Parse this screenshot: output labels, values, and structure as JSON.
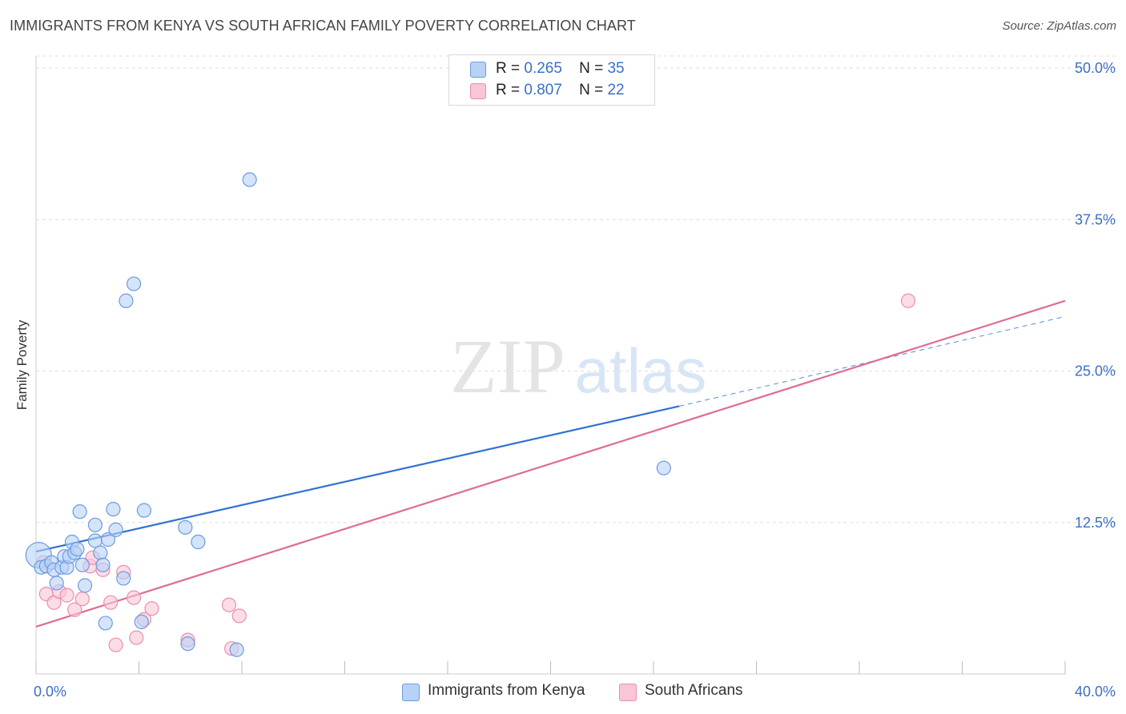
{
  "header": {
    "title": "IMMIGRANTS FROM KENYA VS SOUTH AFRICAN FAMILY POVERTY CORRELATION CHART",
    "source": "Source: ZipAtlas.com"
  },
  "colors": {
    "blue_fill": "#b8d2f5",
    "blue_stroke": "#6c9be0",
    "blue_line": "#2f72d3",
    "pink_fill": "#f8c6d6",
    "pink_stroke": "#ea8fae",
    "pink_line": "#e06b96",
    "grid": "#dddddd",
    "axis_tick_text": "#3a6fc7"
  },
  "legend_top": {
    "rows": [
      {
        "r_label": "R =",
        "r_value": "0.265",
        "n_label": "N =",
        "n_value": "35"
      },
      {
        "r_label": "R =",
        "r_value": "0.807",
        "n_label": "N =",
        "n_value": "22"
      }
    ]
  },
  "watermark": {
    "left": "ZIP",
    "right": "atlas"
  },
  "chart_data": {
    "type": "scatter",
    "title": "IMMIGRANTS FROM KENYA VS SOUTH AFRICAN FAMILY POVERTY CORRELATION CHART",
    "xlabel": "",
    "ylabel": "Family Poverty",
    "xlim": [
      0,
      40
    ],
    "ylim": [
      0,
      51
    ],
    "x_tick_labels": [
      "0.0%",
      "40.0%"
    ],
    "y_ticks": [
      12.5,
      25.0,
      37.5,
      50.0
    ],
    "y_tick_labels": [
      "12.5%",
      "25.0%",
      "37.5%",
      "50.0%"
    ],
    "grid": true,
    "legend_position": "bottom-center",
    "series": [
      {
        "name": "Immigrants from Kenya",
        "R": 0.265,
        "N": 35,
        "trend": {
          "x_start": 0,
          "y_start": 10.1,
          "x_end": 25,
          "y_end": 22.1,
          "dashed_x_end": 40,
          "dashed_y_end": 29.5
        },
        "points": [
          {
            "x": 0.1,
            "y": 9.8,
            "big": true
          },
          {
            "x": 0.2,
            "y": 8.8
          },
          {
            "x": 0.4,
            "y": 8.9
          },
          {
            "x": 0.6,
            "y": 9.2
          },
          {
            "x": 0.7,
            "y": 8.6
          },
          {
            "x": 0.8,
            "y": 7.5
          },
          {
            "x": 1.0,
            "y": 8.8
          },
          {
            "x": 1.1,
            "y": 9.7
          },
          {
            "x": 1.2,
            "y": 8.8
          },
          {
            "x": 1.3,
            "y": 9.7
          },
          {
            "x": 1.4,
            "y": 10.9
          },
          {
            "x": 1.5,
            "y": 10.0
          },
          {
            "x": 1.6,
            "y": 10.3
          },
          {
            "x": 1.7,
            "y": 13.4
          },
          {
            "x": 1.8,
            "y": 9.0
          },
          {
            "x": 1.9,
            "y": 7.3
          },
          {
            "x": 2.3,
            "y": 11.0
          },
          {
            "x": 2.3,
            "y": 12.3
          },
          {
            "x": 2.5,
            "y": 10.0
          },
          {
            "x": 2.6,
            "y": 9.0
          },
          {
            "x": 2.7,
            "y": 4.2
          },
          {
            "x": 2.8,
            "y": 11.1
          },
          {
            "x": 3.0,
            "y": 13.6
          },
          {
            "x": 3.1,
            "y": 11.9
          },
          {
            "x": 3.4,
            "y": 7.9
          },
          {
            "x": 3.5,
            "y": 30.8
          },
          {
            "x": 3.8,
            "y": 32.2
          },
          {
            "x": 4.1,
            "y": 4.3
          },
          {
            "x": 4.2,
            "y": 13.5
          },
          {
            "x": 5.8,
            "y": 12.1
          },
          {
            "x": 5.9,
            "y": 2.5
          },
          {
            "x": 6.3,
            "y": 10.9
          },
          {
            "x": 7.8,
            "y": 2.0
          },
          {
            "x": 8.3,
            "y": 40.8
          },
          {
            "x": 24.4,
            "y": 17.0
          }
        ]
      },
      {
        "name": "South Africans",
        "R": 0.807,
        "N": 22,
        "trend": {
          "x_start": 0,
          "y_start": 3.9,
          "x_end": 40,
          "y_end": 30.8
        },
        "points": [
          {
            "x": 0.3,
            "y": 9.2
          },
          {
            "x": 0.4,
            "y": 6.6
          },
          {
            "x": 0.7,
            "y": 5.9
          },
          {
            "x": 0.9,
            "y": 6.8
          },
          {
            "x": 1.2,
            "y": 6.5
          },
          {
            "x": 1.5,
            "y": 5.3
          },
          {
            "x": 1.8,
            "y": 6.2
          },
          {
            "x": 2.1,
            "y": 8.9
          },
          {
            "x": 2.2,
            "y": 9.6
          },
          {
            "x": 2.6,
            "y": 8.6
          },
          {
            "x": 2.9,
            "y": 5.9
          },
          {
            "x": 3.1,
            "y": 2.4
          },
          {
            "x": 3.4,
            "y": 8.4
          },
          {
            "x": 3.8,
            "y": 6.3
          },
          {
            "x": 3.9,
            "y": 3.0
          },
          {
            "x": 4.2,
            "y": 4.5
          },
          {
            "x": 4.5,
            "y": 5.4
          },
          {
            "x": 5.9,
            "y": 2.8
          },
          {
            "x": 7.5,
            "y": 5.7
          },
          {
            "x": 7.6,
            "y": 2.1
          },
          {
            "x": 7.9,
            "y": 4.8
          },
          {
            "x": 33.9,
            "y": 30.8
          }
        ]
      }
    ]
  }
}
